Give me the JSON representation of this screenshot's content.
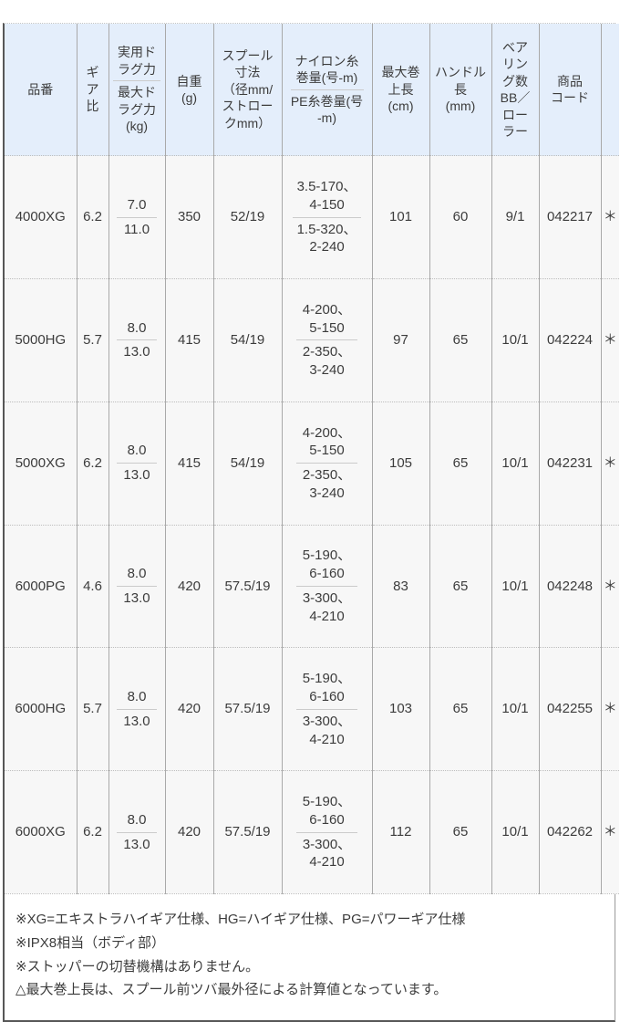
{
  "colors": {
    "header_bg": "#e4eefb",
    "row_bg": "#f7f7f7",
    "grid_vertical": "#a9a9a9",
    "grid_horizontal": "#bdbdbd",
    "split_divider": "#cbcbcb",
    "outer_border": "#575757",
    "text": "#3c3c3c"
  },
  "table": {
    "columns": [
      {
        "id": "model",
        "label": "品番"
      },
      {
        "id": "gear_ratio",
        "label": "ギ\nア\n比"
      },
      {
        "id": "drag",
        "label_top": "実用ド\nラグ力",
        "label_bottom": "最大ド\nラグ力\n(kg)"
      },
      {
        "id": "weight",
        "label": "自重\n(g)"
      },
      {
        "id": "spool",
        "label": "スプール\n寸法\n（径mm/\nストロー\nクmm）"
      },
      {
        "id": "line_capacity",
        "label_top": "ナイロン糸\n巻量(号-m)",
        "label_bottom": "PE糸巻量(号\n-m)"
      },
      {
        "id": "max_retrieve",
        "label": "最大巻\n上長\n(cm)"
      },
      {
        "id": "handle_length",
        "label": "ハンドル\n長\n(mm)"
      },
      {
        "id": "bearings",
        "label": "ベア\nリン\nグ数\nBB／\nロー\nラー"
      },
      {
        "id": "product_code",
        "label": "商品\nコード"
      },
      {
        "id": "note_mark",
        "label": ""
      }
    ],
    "rows": [
      {
        "model": "4000XG",
        "gear_ratio": "6.2",
        "drag_top": "7.0",
        "drag_bottom": "11.0",
        "weight": "350",
        "spool": "52/19",
        "line_top": "3.5-170、\n4-150",
        "line_bottom": "1.5-320、\n2-240",
        "max_retrieve": "101",
        "handle_length": "60",
        "bearings": "9/1",
        "product_code": "042217",
        "note_mark": "＊"
      },
      {
        "model": "5000HG",
        "gear_ratio": "5.7",
        "drag_top": "8.0",
        "drag_bottom": "13.0",
        "weight": "415",
        "spool": "54/19",
        "line_top": "4-200、\n5-150",
        "line_bottom": "2-350、\n3-240",
        "max_retrieve": "97",
        "handle_length": "65",
        "bearings": "10/1",
        "product_code": "042224",
        "note_mark": "＊"
      },
      {
        "model": "5000XG",
        "gear_ratio": "6.2",
        "drag_top": "8.0",
        "drag_bottom": "13.0",
        "weight": "415",
        "spool": "54/19",
        "line_top": "4-200、\n5-150",
        "line_bottom": "2-350、\n3-240",
        "max_retrieve": "105",
        "handle_length": "65",
        "bearings": "10/1",
        "product_code": "042231",
        "note_mark": "＊"
      },
      {
        "model": "6000PG",
        "gear_ratio": "4.6",
        "drag_top": "8.0",
        "drag_bottom": "13.0",
        "weight": "420",
        "spool": "57.5/19",
        "line_top": "5-190、\n6-160",
        "line_bottom": "3-300、\n4-210",
        "max_retrieve": "83",
        "handle_length": "65",
        "bearings": "10/1",
        "product_code": "042248",
        "note_mark": "＊"
      },
      {
        "model": "6000HG",
        "gear_ratio": "5.7",
        "drag_top": "8.0",
        "drag_bottom": "13.0",
        "weight": "420",
        "spool": "57.5/19",
        "line_top": "5-190、\n6-160",
        "line_bottom": "3-300、\n4-210",
        "max_retrieve": "103",
        "handle_length": "65",
        "bearings": "10/1",
        "product_code": "042255",
        "note_mark": "＊"
      },
      {
        "model": "6000XG",
        "gear_ratio": "6.2",
        "drag_top": "8.0",
        "drag_bottom": "13.0",
        "weight": "420",
        "spool": "57.5/19",
        "line_top": "5-190、\n6-160",
        "line_bottom": "3-300、\n4-210",
        "max_retrieve": "112",
        "handle_length": "65",
        "bearings": "10/1",
        "product_code": "042262",
        "note_mark": "＊"
      }
    ]
  },
  "notes": {
    "lines": [
      "※XG=エキストラハイギア仕様、HG=ハイギア仕様、PG=パワーギア仕様",
      "※IPX8相当（ボディ部）",
      "※ストッパーの切替機構はありません。",
      "△最大巻上長は、スプール前ツバ最外径による計算値となっています。"
    ]
  }
}
